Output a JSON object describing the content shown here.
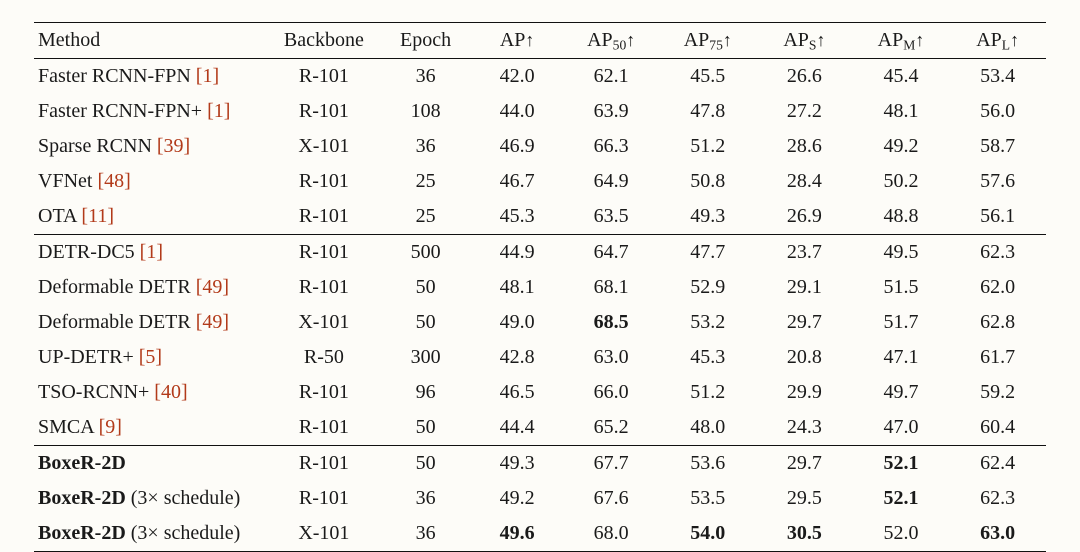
{
  "table": {
    "type": "table",
    "colors": {
      "text": "#1a1a1a",
      "citation": "#b23a1a",
      "rule": "#111111",
      "background": "#fdfcf8"
    },
    "typography": {
      "font_family": "Times New Roman",
      "font_size_pt": 15,
      "bold_weight": 700
    },
    "columns": [
      {
        "label": "Method",
        "align": "left",
        "width_pct": 23
      },
      {
        "label": "Backbone",
        "align": "center",
        "width_pct": 11
      },
      {
        "label": "Epoch",
        "align": "center",
        "width_pct": 9
      },
      {
        "label_base": "AP",
        "sub": "",
        "arrow": "↑",
        "align": "center",
        "width_pct": 9
      },
      {
        "label_base": "AP",
        "sub": "50",
        "arrow": "↑",
        "align": "center",
        "width_pct": 9.5
      },
      {
        "label_base": "AP",
        "sub": "75",
        "arrow": "↑",
        "align": "center",
        "width_pct": 9.5
      },
      {
        "label_base": "AP",
        "sub": "S",
        "arrow": "↑",
        "align": "center",
        "width_pct": 9.5
      },
      {
        "label_base": "AP",
        "sub": "M",
        "arrow": "↑",
        "align": "center",
        "width_pct": 9.5
      },
      {
        "label_base": "AP",
        "sub": "L",
        "arrow": "↑",
        "align": "center",
        "width_pct": 9.5
      }
    ],
    "rule_positions": {
      "top": true,
      "under_header": true,
      "group_dividers_after_row_idx": [
        4,
        10
      ],
      "bottom": true
    },
    "groups": [
      {
        "rows": [
          {
            "method": "Faster RCNN-FPN",
            "cite": "[1]",
            "backbone": "R-101",
            "epoch": "36",
            "cells": [
              {
                "v": "42.0"
              },
              {
                "v": "62.1"
              },
              {
                "v": "45.5"
              },
              {
                "v": "26.6"
              },
              {
                "v": "45.4"
              },
              {
                "v": "53.4"
              }
            ]
          },
          {
            "method": "Faster RCNN-FPN+",
            "cite": "[1]",
            "backbone": "R-101",
            "epoch": "108",
            "cells": [
              {
                "v": "44.0"
              },
              {
                "v": "63.9"
              },
              {
                "v": "47.8"
              },
              {
                "v": "27.2"
              },
              {
                "v": "48.1"
              },
              {
                "v": "56.0"
              }
            ]
          },
          {
            "method": "Sparse RCNN",
            "cite": "[39]",
            "backbone": "X-101",
            "epoch": "36",
            "cells": [
              {
                "v": "46.9"
              },
              {
                "v": "66.3"
              },
              {
                "v": "51.2"
              },
              {
                "v": "28.6"
              },
              {
                "v": "49.2"
              },
              {
                "v": "58.7"
              }
            ]
          },
          {
            "method": "VFNet",
            "cite": "[48]",
            "backbone": "R-101",
            "epoch": "25",
            "cells": [
              {
                "v": "46.7"
              },
              {
                "v": "64.9"
              },
              {
                "v": "50.8"
              },
              {
                "v": "28.4"
              },
              {
                "v": "50.2"
              },
              {
                "v": "57.6"
              }
            ]
          },
          {
            "method": "OTA",
            "cite": "[11]",
            "backbone": "R-101",
            "epoch": "25",
            "cells": [
              {
                "v": "45.3"
              },
              {
                "v": "63.5"
              },
              {
                "v": "49.3"
              },
              {
                "v": "26.9"
              },
              {
                "v": "48.8"
              },
              {
                "v": "56.1"
              }
            ]
          }
        ]
      },
      {
        "rows": [
          {
            "method": "DETR-DC5",
            "cite": "[1]",
            "backbone": "R-101",
            "epoch": "500",
            "cells": [
              {
                "v": "44.9"
              },
              {
                "v": "64.7"
              },
              {
                "v": "47.7"
              },
              {
                "v": "23.7"
              },
              {
                "v": "49.5"
              },
              {
                "v": "62.3"
              }
            ]
          },
          {
            "method": "Deformable DETR",
            "cite": "[49]",
            "backbone": "R-101",
            "epoch": "50",
            "cells": [
              {
                "v": "48.1"
              },
              {
                "v": "68.1"
              },
              {
                "v": "52.9"
              },
              {
                "v": "29.1"
              },
              {
                "v": "51.5"
              },
              {
                "v": "62.0"
              }
            ]
          },
          {
            "method": "Deformable DETR",
            "cite": "[49]",
            "backbone": "X-101",
            "epoch": "50",
            "cells": [
              {
                "v": "49.0"
              },
              {
                "v": "68.5",
                "bold": true
              },
              {
                "v": "53.2"
              },
              {
                "v": "29.7"
              },
              {
                "v": "51.7"
              },
              {
                "v": "62.8"
              }
            ]
          },
          {
            "method": "UP-DETR+",
            "cite": "[5]",
            "backbone": "R-50",
            "epoch": "300",
            "cells": [
              {
                "v": "42.8"
              },
              {
                "v": "63.0"
              },
              {
                "v": "45.3"
              },
              {
                "v": "20.8"
              },
              {
                "v": "47.1"
              },
              {
                "v": "61.7"
              }
            ]
          },
          {
            "method": "TSO-RCNN+",
            "cite": "[40]",
            "backbone": "R-101",
            "epoch": "96",
            "cells": [
              {
                "v": "46.5"
              },
              {
                "v": "66.0"
              },
              {
                "v": "51.2"
              },
              {
                "v": "29.9"
              },
              {
                "v": "49.7"
              },
              {
                "v": "59.2"
              }
            ]
          },
          {
            "method": "SMCA",
            "cite": "[9]",
            "backbone": "R-101",
            "epoch": "50",
            "cells": [
              {
                "v": "44.4"
              },
              {
                "v": "65.2"
              },
              {
                "v": "48.0"
              },
              {
                "v": "24.3"
              },
              {
                "v": "47.0"
              },
              {
                "v": "60.4"
              }
            ]
          }
        ]
      },
      {
        "rows": [
          {
            "method_bold": "BoxeR-2D",
            "backbone": "R-101",
            "epoch": "50",
            "cells": [
              {
                "v": "49.3"
              },
              {
                "v": "67.7"
              },
              {
                "v": "53.6"
              },
              {
                "v": "29.7"
              },
              {
                "v": "52.1",
                "bold": true
              },
              {
                "v": "62.4"
              }
            ]
          },
          {
            "method_bold": "BoxeR-2D",
            "method_note": " (3× schedule)",
            "backbone": "R-101",
            "epoch": "36",
            "cells": [
              {
                "v": "49.2"
              },
              {
                "v": "67.6"
              },
              {
                "v": "53.5"
              },
              {
                "v": "29.5"
              },
              {
                "v": "52.1",
                "bold": true
              },
              {
                "v": "62.3"
              }
            ]
          },
          {
            "method_bold": "BoxeR-2D",
            "method_note": " (3× schedule)",
            "backbone": "X-101",
            "epoch": "36",
            "cells": [
              {
                "v": "49.6",
                "bold": true
              },
              {
                "v": "68.0"
              },
              {
                "v": "54.0",
                "bold": true
              },
              {
                "v": "30.5",
                "bold": true
              },
              {
                "v": "52.0"
              },
              {
                "v": "63.0",
                "bold": true
              }
            ]
          }
        ]
      }
    ]
  }
}
